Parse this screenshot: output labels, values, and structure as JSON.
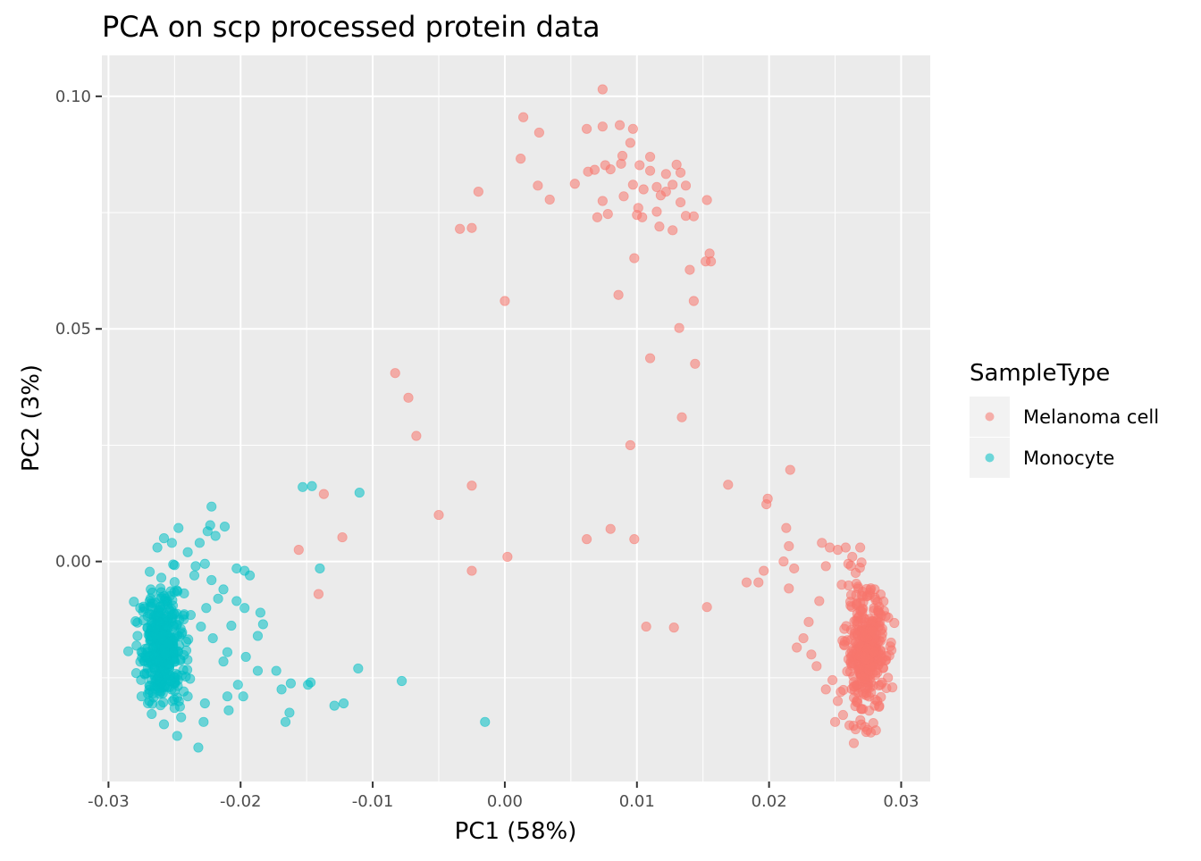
{
  "chart_data": {
    "type": "scatter",
    "title": "PCA on scp processed protein data",
    "xlabel": "PC1 (58%)",
    "ylabel": "PC2 (3%)",
    "xlim": [
      -0.0305,
      0.0322
    ],
    "ylim": [
      -0.0473,
      0.1088
    ],
    "x_ticks": [
      -0.03,
      -0.02,
      -0.01,
      0.0,
      0.01,
      0.02,
      0.03
    ],
    "x_tick_labels": [
      "-0.03",
      "-0.02",
      "-0.01",
      "0.00",
      "0.01",
      "0.02",
      "0.03"
    ],
    "y_ticks": [
      0.0,
      0.05,
      0.1
    ],
    "y_tick_labels": [
      "0.00",
      "0.05",
      "0.10"
    ],
    "grid": true,
    "legend": {
      "title": "SampleType",
      "position": "right",
      "entries": [
        "Melanoma cell",
        "Monocyte"
      ]
    },
    "colors": {
      "Melanoma cell": "#F8766D",
      "Monocyte": "#00BFC4",
      "panel": "#EBEBEB",
      "grid": "#FFFFFF"
    },
    "point_alpha": 0.55,
    "series": [
      {
        "name": "Melanoma cell",
        "cluster": {
          "cx": 0.0273,
          "cy": -0.0195,
          "sx": 0.00075,
          "sy": 0.0065,
          "n": 360
        },
        "points": [
          [
            0.0074,
            0.1015
          ],
          [
            0.0014,
            0.0955
          ],
          [
            0.0026,
            0.0922
          ],
          [
            0.0062,
            0.093
          ],
          [
            0.0074,
            0.0935
          ],
          [
            0.0087,
            0.0938
          ],
          [
            0.0097,
            0.093
          ],
          [
            0.0095,
            0.09
          ],
          [
            0.0089,
            0.0872
          ],
          [
            0.011,
            0.087
          ],
          [
            0.013,
            0.0853
          ],
          [
            0.0012,
            0.0866
          ],
          [
            0.0063,
            0.0838
          ],
          [
            0.0068,
            0.0842
          ],
          [
            0.0076,
            0.0852
          ],
          [
            0.008,
            0.0843
          ],
          [
            0.0088,
            0.0855
          ],
          [
            0.0102,
            0.0852
          ],
          [
            0.011,
            0.084
          ],
          [
            0.0122,
            0.0833
          ],
          [
            0.0133,
            0.0836
          ],
          [
            0.0025,
            0.0808
          ],
          [
            0.0053,
            0.0812
          ],
          [
            0.0097,
            0.081
          ],
          [
            0.0105,
            0.08
          ],
          [
            0.0115,
            0.0805
          ],
          [
            0.0122,
            0.0795
          ],
          [
            0.0127,
            0.081
          ],
          [
            0.0137,
            0.0808
          ],
          [
            0.0118,
            0.0787
          ],
          [
            0.009,
            0.0785
          ],
          [
            0.0074,
            0.0775
          ],
          [
            0.0034,
            0.0778
          ],
          [
            0.0153,
            0.0777
          ],
          [
            0.0101,
            0.076
          ],
          [
            0.0133,
            0.0772
          ],
          [
            -0.002,
            0.0795
          ],
          [
            0.007,
            0.074
          ],
          [
            0.0078,
            0.0747
          ],
          [
            0.01,
            0.0745
          ],
          [
            0.0104,
            0.074
          ],
          [
            0.0115,
            0.0752
          ],
          [
            0.0137,
            0.0743
          ],
          [
            0.0143,
            0.0742
          ],
          [
            -0.0034,
            0.0715
          ],
          [
            -0.0025,
            0.0717
          ],
          [
            0.0117,
            0.072
          ],
          [
            0.0127,
            0.0712
          ],
          [
            0.0155,
            0.0662
          ],
          [
            0.0156,
            0.0645
          ],
          [
            0.0152,
            0.0645
          ],
          [
            0.0098,
            0.0652
          ],
          [
            0.014,
            0.0627
          ],
          [
            0.0086,
            0.0573
          ],
          [
            0.0143,
            0.056
          ],
          [
            0.0,
            0.056
          ],
          [
            0.0132,
            0.0502
          ],
          [
            0.011,
            0.0437
          ],
          [
            0.0144,
            0.0425
          ],
          [
            -0.0083,
            0.0405
          ],
          [
            -0.0073,
            0.0352
          ],
          [
            0.0134,
            0.031
          ],
          [
            -0.0067,
            0.027
          ],
          [
            0.0095,
            0.025
          ],
          [
            0.0216,
            0.0197
          ],
          [
            0.0169,
            0.0165
          ],
          [
            -0.0025,
            0.0163
          ],
          [
            -0.0137,
            0.0145
          ],
          [
            0.0199,
            0.0135
          ],
          [
            0.0198,
            0.0123
          ],
          [
            -0.005,
            0.01
          ],
          [
            0.0213,
            0.0072
          ],
          [
            0.008,
            0.007
          ],
          [
            -0.0123,
            0.0052
          ],
          [
            0.0062,
            0.0048
          ],
          [
            0.0098,
            0.0048
          ],
          [
            0.0215,
            0.0033
          ],
          [
            -0.0156,
            0.0025
          ],
          [
            0.0002,
            0.001
          ],
          [
            0.0211,
            0.0
          ],
          [
            0.0196,
            -0.002
          ],
          [
            0.0219,
            -0.0015
          ],
          [
            -0.0025,
            -0.002
          ],
          [
            0.0183,
            -0.0045
          ],
          [
            0.0192,
            -0.0045
          ],
          [
            0.0215,
            -0.0058
          ],
          [
            -0.0141,
            -0.007
          ],
          [
            0.0153,
            -0.0098
          ],
          [
            0.0107,
            -0.014
          ],
          [
            0.0128,
            -0.0142
          ],
          [
            0.024,
            0.004
          ],
          [
            0.0246,
            0.003
          ],
          [
            0.0252,
            0.0025
          ],
          [
            0.0258,
            0.003
          ],
          [
            0.0243,
            -0.001
          ],
          [
            0.0255,
            -0.005
          ],
          [
            0.0238,
            -0.0085
          ],
          [
            0.023,
            -0.013
          ],
          [
            0.0226,
            -0.0165
          ],
          [
            0.0221,
            -0.0185
          ],
          [
            0.0232,
            -0.02
          ],
          [
            0.0236,
            -0.0225
          ],
          [
            0.0248,
            -0.0255
          ],
          [
            0.0243,
            -0.0275
          ],
          [
            0.0252,
            -0.03
          ],
          [
            0.0256,
            -0.033
          ],
          [
            0.025,
            -0.0345
          ],
          [
            0.0285,
            -0.0215
          ],
          [
            0.029,
            -0.025
          ],
          [
            0.028,
            -0.031
          ],
          [
            0.026,
            -0.0005
          ],
          [
            0.0269,
            0.003
          ],
          [
            0.0263,
            0.001
          ],
          [
            0.028,
            -0.006
          ],
          [
            0.0283,
            -0.011
          ]
        ]
      },
      {
        "name": "Monocyte",
        "cluster": {
          "cx": -0.0259,
          "cy": -0.0185,
          "sx": 0.0008,
          "sy": 0.006,
          "n": 380
        },
        "points": [
          [
            -0.0222,
            0.0118
          ],
          [
            -0.0146,
            0.0162
          ],
          [
            -0.0153,
            0.016
          ],
          [
            -0.011,
            0.0148
          ],
          [
            -0.0223,
            0.0078
          ],
          [
            -0.0212,
            0.0075
          ],
          [
            -0.0225,
            0.0065
          ],
          [
            -0.0247,
            0.0072
          ],
          [
            -0.0219,
            0.0055
          ],
          [
            -0.0231,
            0.004
          ],
          [
            -0.024,
            0.002
          ],
          [
            -0.0227,
            -0.0005
          ],
          [
            -0.0234,
            -0.001
          ],
          [
            -0.0203,
            -0.0015
          ],
          [
            -0.0197,
            -0.002
          ],
          [
            -0.0193,
            -0.003
          ],
          [
            -0.014,
            -0.0015
          ],
          [
            -0.0222,
            -0.004
          ],
          [
            -0.0213,
            -0.006
          ],
          [
            -0.0217,
            -0.008
          ],
          [
            -0.0203,
            -0.0085
          ],
          [
            -0.0197,
            -0.01
          ],
          [
            -0.0185,
            -0.011
          ],
          [
            -0.0183,
            -0.0135
          ],
          [
            -0.0187,
            -0.016
          ],
          [
            -0.0207,
            -0.0138
          ],
          [
            -0.0221,
            -0.0165
          ],
          [
            -0.021,
            -0.0195
          ],
          [
            -0.0196,
            -0.0205
          ],
          [
            -0.0213,
            -0.0215
          ],
          [
            -0.0187,
            -0.0235
          ],
          [
            -0.0173,
            -0.0235
          ],
          [
            -0.0162,
            -0.0262
          ],
          [
            -0.0149,
            -0.0265
          ],
          [
            -0.0111,
            -0.023
          ],
          [
            -0.0078,
            -0.0257
          ],
          [
            -0.0147,
            -0.026
          ],
          [
            -0.0202,
            -0.0265
          ],
          [
            -0.0198,
            -0.029
          ],
          [
            -0.021,
            -0.029
          ],
          [
            -0.0169,
            -0.0275
          ],
          [
            -0.0129,
            -0.031
          ],
          [
            -0.0122,
            -0.0305
          ],
          [
            -0.0209,
            -0.032
          ],
          [
            -0.0227,
            -0.0305
          ],
          [
            -0.024,
            -0.029
          ],
          [
            -0.025,
            -0.0315
          ],
          [
            -0.0163,
            -0.0325
          ],
          [
            -0.0166,
            -0.0345
          ],
          [
            -0.0015,
            -0.0345
          ],
          [
            -0.0228,
            -0.0345
          ],
          [
            -0.0245,
            -0.0335
          ],
          [
            -0.0232,
            -0.04
          ],
          [
            -0.0248,
            -0.0375
          ],
          [
            -0.0258,
            -0.035
          ],
          [
            -0.0269,
            -0.03
          ],
          [
            -0.0275,
            -0.029
          ],
          [
            -0.0279,
            -0.024
          ],
          [
            -0.0278,
            -0.016
          ],
          [
            -0.0276,
            -0.01
          ],
          [
            -0.0258,
            0.005
          ],
          [
            -0.0252,
            0.004
          ],
          [
            -0.0263,
            0.003
          ],
          [
            -0.026,
            -0.0035
          ],
          [
            -0.0268,
            -0.006
          ],
          [
            -0.025,
            -0.0008
          ],
          [
            -0.0235,
            -0.003
          ],
          [
            -0.0226,
            -0.01
          ],
          [
            -0.023,
            -0.014
          ]
        ]
      }
    ]
  }
}
